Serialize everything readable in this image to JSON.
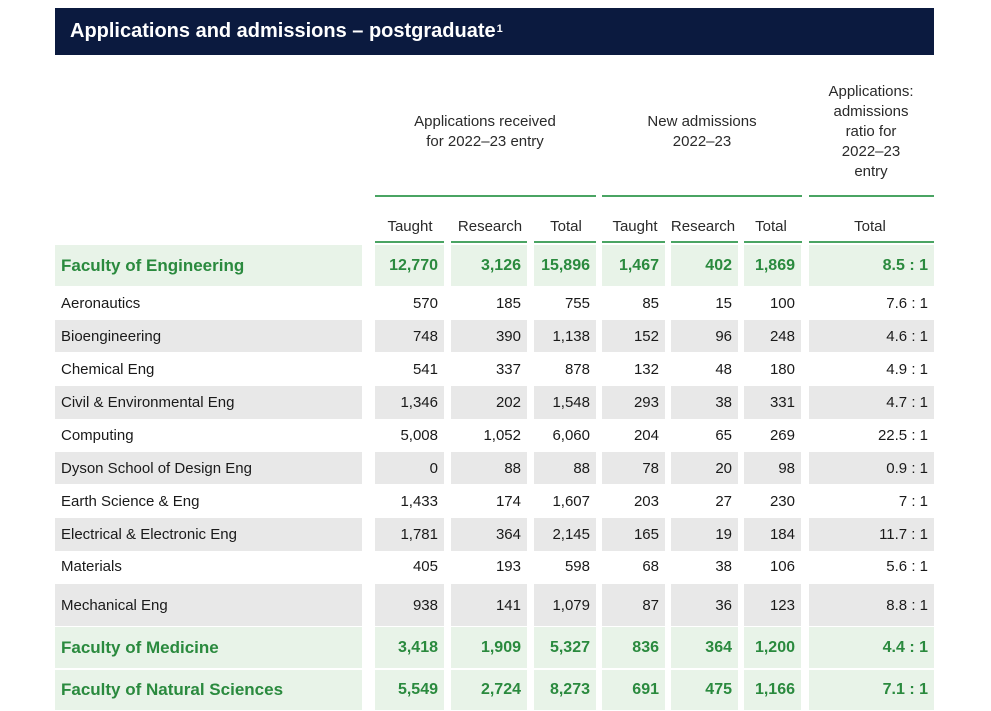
{
  "title": {
    "text": "Applications and admissions – postgraduate",
    "footnote": "1"
  },
  "group_headers": {
    "applications": "Applications received for 2022–23 entry",
    "admissions": "New admissions 2022–23",
    "ratio": "Applications: admissions ratio for 2022–23 entry"
  },
  "columns": [
    "Taught",
    "Research",
    "Total",
    "Taught",
    "Research",
    "Total",
    "Total"
  ],
  "rows": [
    {
      "name": "Faculty of Engineering",
      "faculty": true,
      "values": [
        "12,770",
        "3,126",
        "15,896",
        "1,467",
        "402",
        "1,869",
        "8.5 : 1"
      ]
    },
    {
      "name": "Aeronautics",
      "values": [
        "570",
        "185",
        "755",
        "85",
        "15",
        "100",
        "7.6 : 1"
      ]
    },
    {
      "name": "Bioengineering",
      "values": [
        "748",
        "390",
        "1,138",
        "152",
        "96",
        "248",
        "4.6 : 1"
      ]
    },
    {
      "name": "Chemical Eng",
      "values": [
        "541",
        "337",
        "878",
        "132",
        "48",
        "180",
        "4.9 : 1"
      ]
    },
    {
      "name": "Civil & Environmental Eng",
      "values": [
        "1,346",
        "202",
        "1,548",
        "293",
        "38",
        "331",
        "4.7 : 1"
      ]
    },
    {
      "name": "Computing",
      "values": [
        "5,008",
        "1,052",
        "6,060",
        "204",
        "65",
        "269",
        "22.5 : 1"
      ]
    },
    {
      "name": "Dyson School of Design Eng",
      "values": [
        "0",
        "88",
        "88",
        "78",
        "20",
        "98",
        "0.9 : 1"
      ]
    },
    {
      "name": "Earth Science & Eng",
      "values": [
        "1,433",
        "174",
        "1,607",
        "203",
        "27",
        "230",
        "7 : 1"
      ]
    },
    {
      "name": "Electrical & Electronic Eng",
      "values": [
        "1,781",
        "364",
        "2,145",
        "165",
        "19",
        "184",
        "11.7 : 1"
      ]
    },
    {
      "name": "Materials",
      "values": [
        "405",
        "193",
        "598",
        "68",
        "38",
        "106",
        "5.6 : 1"
      ]
    },
    {
      "name": "Mechanical Eng",
      "values": [
        "938",
        "141",
        "1,079",
        "87",
        "36",
        "123",
        "8.8 : 1"
      ]
    },
    {
      "name": "Faculty of Medicine",
      "faculty": true,
      "values": [
        "3,418",
        "1,909",
        "5,327",
        "836",
        "364",
        "1,200",
        "4.4 : 1"
      ]
    },
    {
      "name": "Faculty of Natural Sciences",
      "faculty": true,
      "values": [
        "5,549",
        "2,724",
        "8,273",
        "691",
        "475",
        "1,166",
        "7.1 : 1"
      ]
    }
  ]
}
